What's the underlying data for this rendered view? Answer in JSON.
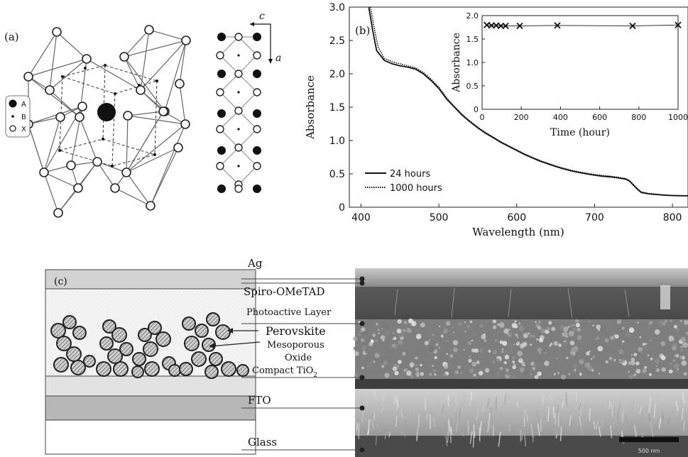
{
  "panel_a": {
    "label": "(a)",
    "legend": [
      "A",
      "B",
      "X"
    ],
    "axis_c": "c",
    "axis_a": "a"
  },
  "panel_b": {
    "label": "(b)"
  },
  "panel_c": {
    "label": "(c)",
    "layers": [
      "Ag",
      "Spiro-OMeTAD",
      "Photoactive Layer",
      "Perovskite",
      "Mesoporous",
      "Oxide",
      "Compact TiO",
      "FTO",
      "Glass"
    ],
    "subscript": "2",
    "scale_bar": "500 nm"
  },
  "chart_data": [
    {
      "type": "line",
      "xlabel": "Wavelength (nm)",
      "ylabel": "Absorbance",
      "xlim": [
        385,
        820
      ],
      "ylim": [
        0,
        3.0
      ],
      "xticks": [
        400,
        500,
        600,
        700,
        800
      ],
      "yticks": [
        "0",
        "0.5",
        "1.0",
        "1.5",
        "2.0",
        "2.5",
        "3.0"
      ],
      "legend_position": "bottom-left",
      "series": [
        {
          "name": "24 hours",
          "style": "solid",
          "x": [
            410,
            415,
            420,
            430,
            440,
            450,
            460,
            470,
            480,
            490,
            500,
            510,
            520,
            530,
            540,
            550,
            560,
            570,
            580,
            590,
            600,
            610,
            620,
            630,
            640,
            650,
            660,
            670,
            680,
            690,
            700,
            710,
            720,
            730,
            740,
            745,
            750,
            755,
            760,
            770,
            780,
            790,
            800,
            820
          ],
          "y": [
            3.0,
            2.65,
            2.35,
            2.2,
            2.15,
            2.12,
            2.1,
            2.07,
            2.0,
            1.9,
            1.78,
            1.62,
            1.5,
            1.38,
            1.28,
            1.19,
            1.11,
            1.04,
            0.97,
            0.91,
            0.85,
            0.79,
            0.74,
            0.69,
            0.65,
            0.61,
            0.575,
            0.545,
            0.52,
            0.5,
            0.48,
            0.465,
            0.455,
            0.44,
            0.42,
            0.39,
            0.33,
            0.27,
            0.22,
            0.2,
            0.19,
            0.18,
            0.175,
            0.17
          ]
        },
        {
          "name": "1000 hours",
          "style": "dotted",
          "x": [
            412,
            417,
            422,
            430,
            440,
            450,
            460,
            470,
            480,
            490,
            500,
            510,
            520,
            530,
            540,
            550,
            560,
            570,
            580,
            590,
            600,
            610,
            620,
            630,
            640,
            650,
            660,
            670,
            680,
            690,
            700,
            710,
            720,
            730,
            740,
            745,
            750,
            755,
            760,
            770,
            780,
            790,
            800,
            820
          ],
          "y": [
            3.0,
            2.68,
            2.4,
            2.23,
            2.18,
            2.15,
            2.12,
            2.09,
            2.02,
            1.92,
            1.8,
            1.64,
            1.51,
            1.39,
            1.29,
            1.2,
            1.12,
            1.05,
            0.98,
            0.92,
            0.86,
            0.8,
            0.75,
            0.7,
            0.66,
            0.62,
            0.585,
            0.555,
            0.53,
            0.51,
            0.49,
            0.475,
            0.465,
            0.45,
            0.43,
            0.4,
            0.34,
            0.28,
            0.23,
            0.205,
            0.195,
            0.185,
            0.178,
            0.172
          ]
        }
      ]
    },
    {
      "type": "scatter",
      "xlabel": "Time (hour)",
      "ylabel": "Absorbance",
      "xlim": [
        0,
        1000
      ],
      "ylim": [
        0,
        2.0
      ],
      "xticks": [
        0,
        200,
        400,
        600,
        800,
        1000
      ],
      "yticks": [
        "0",
        "0.5",
        "1.0",
        "1.5",
        "2.0"
      ],
      "series": [
        {
          "x": [
            24,
            48,
            72,
            96,
            120,
            192,
            384,
            768,
            1000
          ],
          "y": [
            1.8,
            1.79,
            1.79,
            1.78,
            1.78,
            1.78,
            1.79,
            1.78,
            1.8
          ]
        }
      ]
    }
  ]
}
